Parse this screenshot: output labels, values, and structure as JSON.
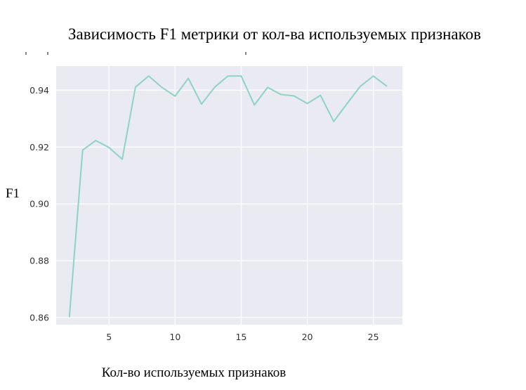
{
  "chart_data": {
    "type": "line",
    "title": "Зависимость F1 метрики от кол-ва используемых признаков",
    "xlabel": "Кол-во используемых признаков",
    "ylabel": "F1",
    "xlim": [
      1,
      27.2
    ],
    "ylim": [
      0.8575,
      0.9485
    ],
    "xticks": [
      5,
      10,
      15,
      20,
      25
    ],
    "yticks": [
      0.86,
      0.88,
      0.9,
      0.92,
      0.94
    ],
    "grid": true,
    "series": [
      {
        "color": "#8dd3c7",
        "x": [
          2,
          3,
          4,
          5,
          6,
          7,
          8,
          9,
          10,
          11,
          12,
          13,
          14,
          15,
          16,
          17,
          18,
          19,
          20,
          21,
          22,
          23,
          24,
          25,
          26
        ],
        "y": [
          0.8603,
          0.9189,
          0.9223,
          0.9198,
          0.9157,
          0.9411,
          0.945,
          0.941,
          0.9379,
          0.9442,
          0.9351,
          0.9411,
          0.945,
          0.945,
          0.9348,
          0.941,
          0.9385,
          0.938,
          0.9353,
          0.9382,
          0.929,
          0.9352,
          0.9413,
          0.945,
          0.9415
        ]
      }
    ]
  },
  "colors": {
    "plot_background": "#eaeaf2",
    "grid": "#ffffff",
    "line": "#8dd3c7",
    "tick_text": "#333333",
    "label_text": "#000000"
  }
}
